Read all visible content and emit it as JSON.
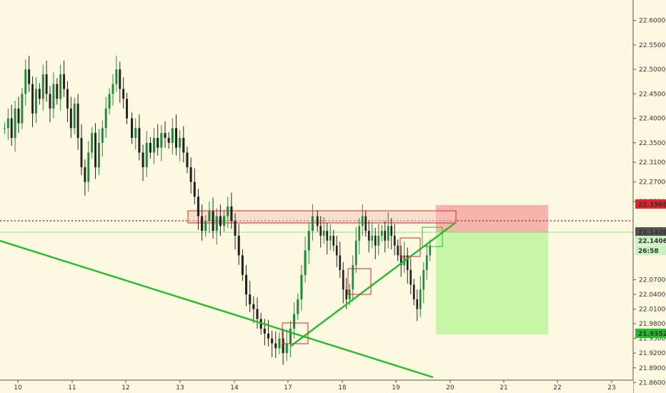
{
  "chart_data": {
    "type": "candlestick",
    "colors": {
      "background": "#fdf9e0",
      "up": "#1f8a3a",
      "down": "#222222",
      "trendline": "#1fbf2c",
      "stop_zone": "#f4a9a0",
      "target_zone": "#c4f5a5",
      "resistance_line": "#e0242a",
      "entry_line": "#6cd66c",
      "box_red": "#e0242a",
      "box_green": "#1fbf2c",
      "axis_bg": "#fdf9e0"
    },
    "ylim": [
      21.84,
      22.62
    ],
    "y_ticks": [
      22.6,
      22.55,
      22.5,
      22.45,
      22.4,
      22.35,
      22.31,
      22.27,
      22.23,
      22.07,
      22.04,
      22.01,
      21.98,
      21.95,
      21.92,
      21.89,
      21.86
    ],
    "y_tick_labels": [
      "22.60000",
      "22.55000",
      "22.50000",
      "22.45000",
      "22.40000",
      "22.35000",
      "22.31000",
      "22.27000",
      "22.23000",
      "22.07000",
      "22.04000",
      "22.01000",
      "21.98000",
      "21.95000",
      "21.92000",
      "21.89000",
      "21.86000"
    ],
    "x_tick_labels": [
      "10",
      "11",
      "12",
      "13",
      "14",
      "17",
      "18",
      "19",
      "20",
      "21",
      "22",
      "23"
    ],
    "price_badges": [
      {
        "label": "22.19680",
        "value": 22.1968,
        "color": "#e0242a",
        "text_color": "#ffffff"
      },
      {
        "label": "22.14288",
        "value": 22.14288,
        "color": "#555555",
        "text_color": "#ffffff"
      },
      {
        "label": "22.14061",
        "value": 22.14061,
        "color": "#c9f2c0",
        "text_color": "#1a5a1a"
      },
      {
        "label": "26:58",
        "value": 22.123,
        "color": "#c9f2c0",
        "text_color": "#1a5a1a"
      },
      {
        "label": "21.93525",
        "value": 21.93525,
        "color": "#1fbf2c",
        "text_color": "#ffffff"
      }
    ],
    "resistance_level": 22.16,
    "current_price": 22.14288,
    "stop_level": 22.1968,
    "target_level": 21.93525,
    "series": [
      {
        "segment": "day-10-12",
        "start_price": 22.38,
        "values": [
          22.38,
          22.4,
          22.36,
          22.42,
          22.39,
          22.45,
          22.5,
          22.47,
          22.41,
          22.46,
          22.44,
          22.49,
          22.45,
          22.42,
          22.47,
          22.44,
          22.49,
          22.46,
          22.42,
          22.38,
          22.43,
          22.36,
          22.3,
          22.27,
          22.33,
          22.37,
          22.3,
          22.35,
          22.38,
          22.42,
          22.45,
          22.47,
          22.5,
          22.46,
          22.44,
          22.4
        ]
      },
      {
        "segment": "day-12-14",
        "start_price": 22.4,
        "values": [
          22.36,
          22.38,
          22.33,
          22.3,
          22.35,
          22.33,
          22.36,
          22.34,
          22.37,
          22.36,
          22.35,
          22.38,
          22.34,
          22.36,
          22.33,
          22.3,
          22.27,
          22.24,
          22.2,
          22.17,
          22.19,
          22.21,
          22.17,
          22.2,
          22.18,
          22.2,
          22.22,
          22.19,
          22.16,
          22.12,
          22.08,
          22.04,
          22.02,
          22.01,
          21.99,
          21.97,
          21.96,
          21.95,
          21.94,
          21.93,
          21.95,
          21.92,
          21.94,
          21.97,
          22.0,
          22.03,
          22.08,
          22.13,
          22.17,
          22.2
        ]
      },
      {
        "segment": "day-17-20",
        "start_price": 22.2,
        "values": [
          22.18,
          22.16,
          22.17,
          22.15,
          22.16,
          22.14,
          22.12,
          22.09,
          22.05,
          22.03,
          22.05,
          22.1,
          22.15,
          22.18,
          22.2,
          22.17,
          22.15,
          22.16,
          22.14,
          22.16,
          22.17,
          22.15,
          22.18,
          22.16,
          22.14,
          22.12,
          22.1,
          22.12,
          22.09,
          22.06,
          22.03,
          22.01,
          22.05,
          22.09,
          22.12,
          22.14
        ]
      }
    ]
  }
}
